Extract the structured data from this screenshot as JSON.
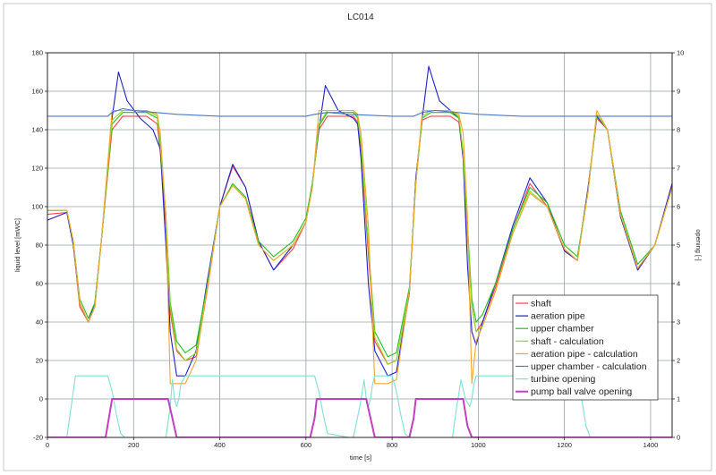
{
  "chart_data": {
    "type": "line",
    "title": "LC014",
    "xlabel": "time [s]",
    "ylabel": "liquid level [mWC]",
    "y2label": "opening [-]",
    "xlim": [
      0,
      1450
    ],
    "ylim": [
      -20,
      180
    ],
    "y2lim": [
      0,
      10
    ],
    "xticks": [
      0,
      200,
      400,
      600,
      800,
      1000,
      1200,
      1400
    ],
    "yticks": [
      -20,
      0,
      20,
      40,
      60,
      80,
      100,
      120,
      140,
      160,
      180
    ],
    "y2ticks": [
      0,
      1,
      2,
      3,
      4,
      5,
      6,
      7,
      8,
      9,
      10
    ],
    "grid": true,
    "legend_position": "bottom-right",
    "series": [
      {
        "name": "shaft",
        "color": "#ff4040",
        "axis": "left",
        "x": [
          0,
          45,
          60,
          75,
          95,
          110,
          125,
          150,
          175,
          200,
          230,
          255,
          262,
          275,
          285,
          300,
          320,
          345,
          370,
          400,
          430,
          460,
          490,
          525,
          570,
          600,
          615,
          630,
          650,
          680,
          710,
          720,
          728,
          745,
          760,
          790,
          810,
          840,
          855,
          870,
          890,
          910,
          935,
          955,
          965,
          975,
          985,
          995,
          1010,
          1040,
          1080,
          1120,
          1160,
          1200,
          1230,
          1255,
          1275,
          1300,
          1330,
          1370,
          1410,
          1450
        ],
        "y": [
          96,
          97,
          80,
          48,
          40,
          48,
          82,
          140,
          147,
          147,
          147,
          143,
          128,
          90,
          45,
          25,
          20,
          22,
          55,
          100,
          121,
          110,
          82,
          67,
          78,
          92,
          112,
          140,
          147,
          147,
          147,
          144,
          130,
          75,
          30,
          18,
          20,
          55,
          115,
          145,
          147,
          147,
          147,
          144,
          125,
          85,
          48,
          35,
          40,
          58,
          88,
          112,
          100,
          77,
          72,
          110,
          146,
          140,
          95,
          67,
          80,
          112
        ]
      },
      {
        "name": "aeration pipe",
        "color": "#2020c8",
        "axis": "left",
        "x": [
          0,
          45,
          60,
          75,
          95,
          110,
          125,
          150,
          165,
          185,
          215,
          245,
          262,
          275,
          285,
          300,
          320,
          345,
          370,
          400,
          430,
          460,
          490,
          525,
          570,
          600,
          615,
          630,
          645,
          675,
          710,
          720,
          728,
          745,
          760,
          790,
          810,
          840,
          855,
          870,
          885,
          910,
          935,
          955,
          965,
          975,
          985,
          995,
          1010,
          1040,
          1080,
          1120,
          1160,
          1200,
          1230,
          1255,
          1275,
          1300,
          1330,
          1370,
          1410,
          1450
        ],
        "y": [
          93,
          97,
          80,
          50,
          40,
          50,
          82,
          146,
          170,
          155,
          146,
          140,
          130,
          80,
          35,
          12,
          12,
          25,
          60,
          100,
          122,
          110,
          82,
          67,
          80,
          92,
          112,
          140,
          163,
          150,
          146,
          143,
          125,
          60,
          25,
          12,
          14,
          55,
          115,
          146,
          173,
          155,
          150,
          146,
          125,
          70,
          35,
          28,
          40,
          60,
          90,
          115,
          102,
          77,
          72,
          110,
          147,
          140,
          95,
          67,
          80,
          112
        ]
      },
      {
        "name": "upper chamber",
        "color": "#20c020",
        "axis": "left",
        "x": [
          0,
          45,
          60,
          75,
          95,
          110,
          125,
          150,
          175,
          200,
          230,
          255,
          262,
          275,
          285,
          300,
          320,
          345,
          370,
          400,
          430,
          460,
          490,
          525,
          570,
          600,
          615,
          630,
          650,
          680,
          710,
          720,
          728,
          745,
          760,
          790,
          810,
          840,
          855,
          870,
          890,
          910,
          935,
          955,
          965,
          975,
          985,
          995,
          1010,
          1040,
          1080,
          1120,
          1160,
          1200,
          1230,
          1255,
          1275,
          1300,
          1330,
          1370,
          1410,
          1450
        ],
        "y": [
          98,
          98,
          82,
          52,
          42,
          50,
          82,
          143,
          149,
          149,
          149,
          146,
          132,
          95,
          50,
          30,
          24,
          28,
          58,
          100,
          112,
          105,
          82,
          74,
          82,
          94,
          112,
          142,
          149,
          149,
          149,
          146,
          132,
          80,
          35,
          22,
          24,
          58,
          112,
          146,
          149,
          149,
          149,
          146,
          128,
          90,
          52,
          40,
          44,
          60,
          88,
          110,
          102,
          80,
          74,
          108,
          148,
          140,
          98,
          70,
          80,
          110
        ]
      },
      {
        "name": "shaft - calculation",
        "color": "#90d820",
        "axis": "left",
        "x": [
          0,
          45,
          60,
          75,
          95,
          110,
          125,
          150,
          175,
          200,
          230,
          255,
          262,
          275,
          285,
          300,
          320,
          345,
          370,
          400,
          430,
          460,
          490,
          525,
          570,
          600,
          615,
          630,
          650,
          680,
          710,
          720,
          728,
          745,
          760,
          790,
          810,
          840,
          855,
          870,
          890,
          910,
          935,
          955,
          965,
          975,
          985,
          995,
          1010,
          1040,
          1080,
          1120,
          1160,
          1200,
          1230,
          1255,
          1275,
          1300,
          1330,
          1370,
          1410,
          1450
        ],
        "y": [
          98,
          98,
          82,
          50,
          40,
          48,
          82,
          145,
          150,
          150,
          150,
          147,
          133,
          95,
          48,
          26,
          20,
          24,
          56,
          100,
          111,
          104,
          80,
          72,
          80,
          92,
          110,
          143,
          150,
          150,
          150,
          147,
          133,
          80,
          32,
          18,
          20,
          56,
          112,
          147,
          150,
          150,
          150,
          147,
          128,
          88,
          48,
          35,
          38,
          56,
          86,
          108,
          100,
          78,
          72,
          108,
          148,
          140,
          96,
          68,
          80,
          110
        ]
      },
      {
        "name": "aeration pipe - calculation",
        "color": "#f0a830",
        "axis": "left",
        "x": [
          0,
          45,
          60,
          75,
          95,
          110,
          125,
          150,
          175,
          200,
          230,
          255,
          262,
          275,
          285,
          300,
          320,
          345,
          370,
          400,
          430,
          460,
          490,
          525,
          570,
          600,
          615,
          630,
          650,
          680,
          710,
          720,
          728,
          745,
          760,
          790,
          810,
          840,
          855,
          870,
          890,
          910,
          935,
          955,
          965,
          975,
          985,
          995,
          1010,
          1040,
          1080,
          1120,
          1160,
          1200,
          1230,
          1255,
          1275,
          1300,
          1330,
          1370,
          1410,
          1450
        ],
        "y": [
          98,
          98,
          82,
          50,
          40,
          48,
          82,
          150,
          150,
          150,
          150,
          148,
          138,
          95,
          8,
          8,
          8,
          20,
          56,
          100,
          111,
          104,
          80,
          72,
          80,
          92,
          110,
          150,
          150,
          150,
          150,
          148,
          138,
          90,
          8,
          8,
          10,
          56,
          112,
          150,
          150,
          150,
          150,
          148,
          138,
          95,
          8,
          30,
          38,
          56,
          86,
          107,
          100,
          78,
          72,
          108,
          150,
          140,
          96,
          68,
          80,
          110
        ]
      },
      {
        "name": "upper chamber - calculation",
        "color": "#4878c8",
        "axis": "left",
        "x": [
          0,
          100,
          140,
          150,
          175,
          200,
          250,
          300,
          400,
          500,
          600,
          620,
          650,
          700,
          800,
          850,
          870,
          900,
          950,
          1000,
          1100,
          1200,
          1300,
          1400,
          1450
        ],
        "y": [
          147,
          147,
          147,
          149,
          151,
          150,
          149,
          148,
          147,
          147,
          147,
          148,
          149,
          148,
          147,
          147,
          149,
          150,
          149,
          148,
          147,
          147,
          147,
          147,
          147
        ],
        "clip_left": 150
      },
      {
        "name": "turbine opening",
        "color": "#80e0d0",
        "axis": "right",
        "x": [
          0,
          45,
          55,
          65,
          75,
          140,
          150,
          160,
          170,
          180,
          275,
          285,
          290,
          295,
          300,
          305,
          310,
          320,
          345,
          620,
          630,
          640,
          650,
          700,
          710,
          725,
          735,
          740,
          745,
          750,
          755,
          760,
          770,
          800,
          810,
          820,
          830,
          840,
          940,
          950,
          960,
          970,
          980,
          985,
          990,
          995,
          1000,
          1010,
          1030,
          1230,
          1240,
          1250,
          1260,
          1450
        ],
        "y": [
          0,
          0,
          0.8,
          1.6,
          1.6,
          1.6,
          1.2,
          0.6,
          0.1,
          0,
          0,
          0.8,
          1.5,
          1.0,
          0.8,
          1.0,
          1.4,
          1.6,
          1.6,
          1.6,
          1.2,
          0.6,
          0.1,
          0,
          0,
          0.8,
          1.5,
          1.0,
          0.8,
          1.0,
          1.4,
          1.6,
          1.6,
          1.6,
          1.2,
          0.6,
          0.1,
          0,
          0,
          0.8,
          1.5,
          1.0,
          0.8,
          1.0,
          1.4,
          1.6,
          1.6,
          1.6,
          1.6,
          1.6,
          1.0,
          0.3,
          0,
          0
        ]
      },
      {
        "name": "pump ball valve opening",
        "color": "#c040c0",
        "axis": "right",
        "x": [
          0,
          135,
          150,
          280,
          300,
          310,
          600,
          610,
          620,
          625,
          740,
          760,
          770,
          840,
          850,
          855,
          965,
          975,
          985,
          1450
        ],
        "y": [
          0,
          0,
          1,
          1,
          0,
          0,
          0,
          0,
          0.5,
          1,
          1,
          0,
          0,
          0,
          0.5,
          1,
          1,
          0.3,
          0,
          0
        ]
      }
    ]
  }
}
